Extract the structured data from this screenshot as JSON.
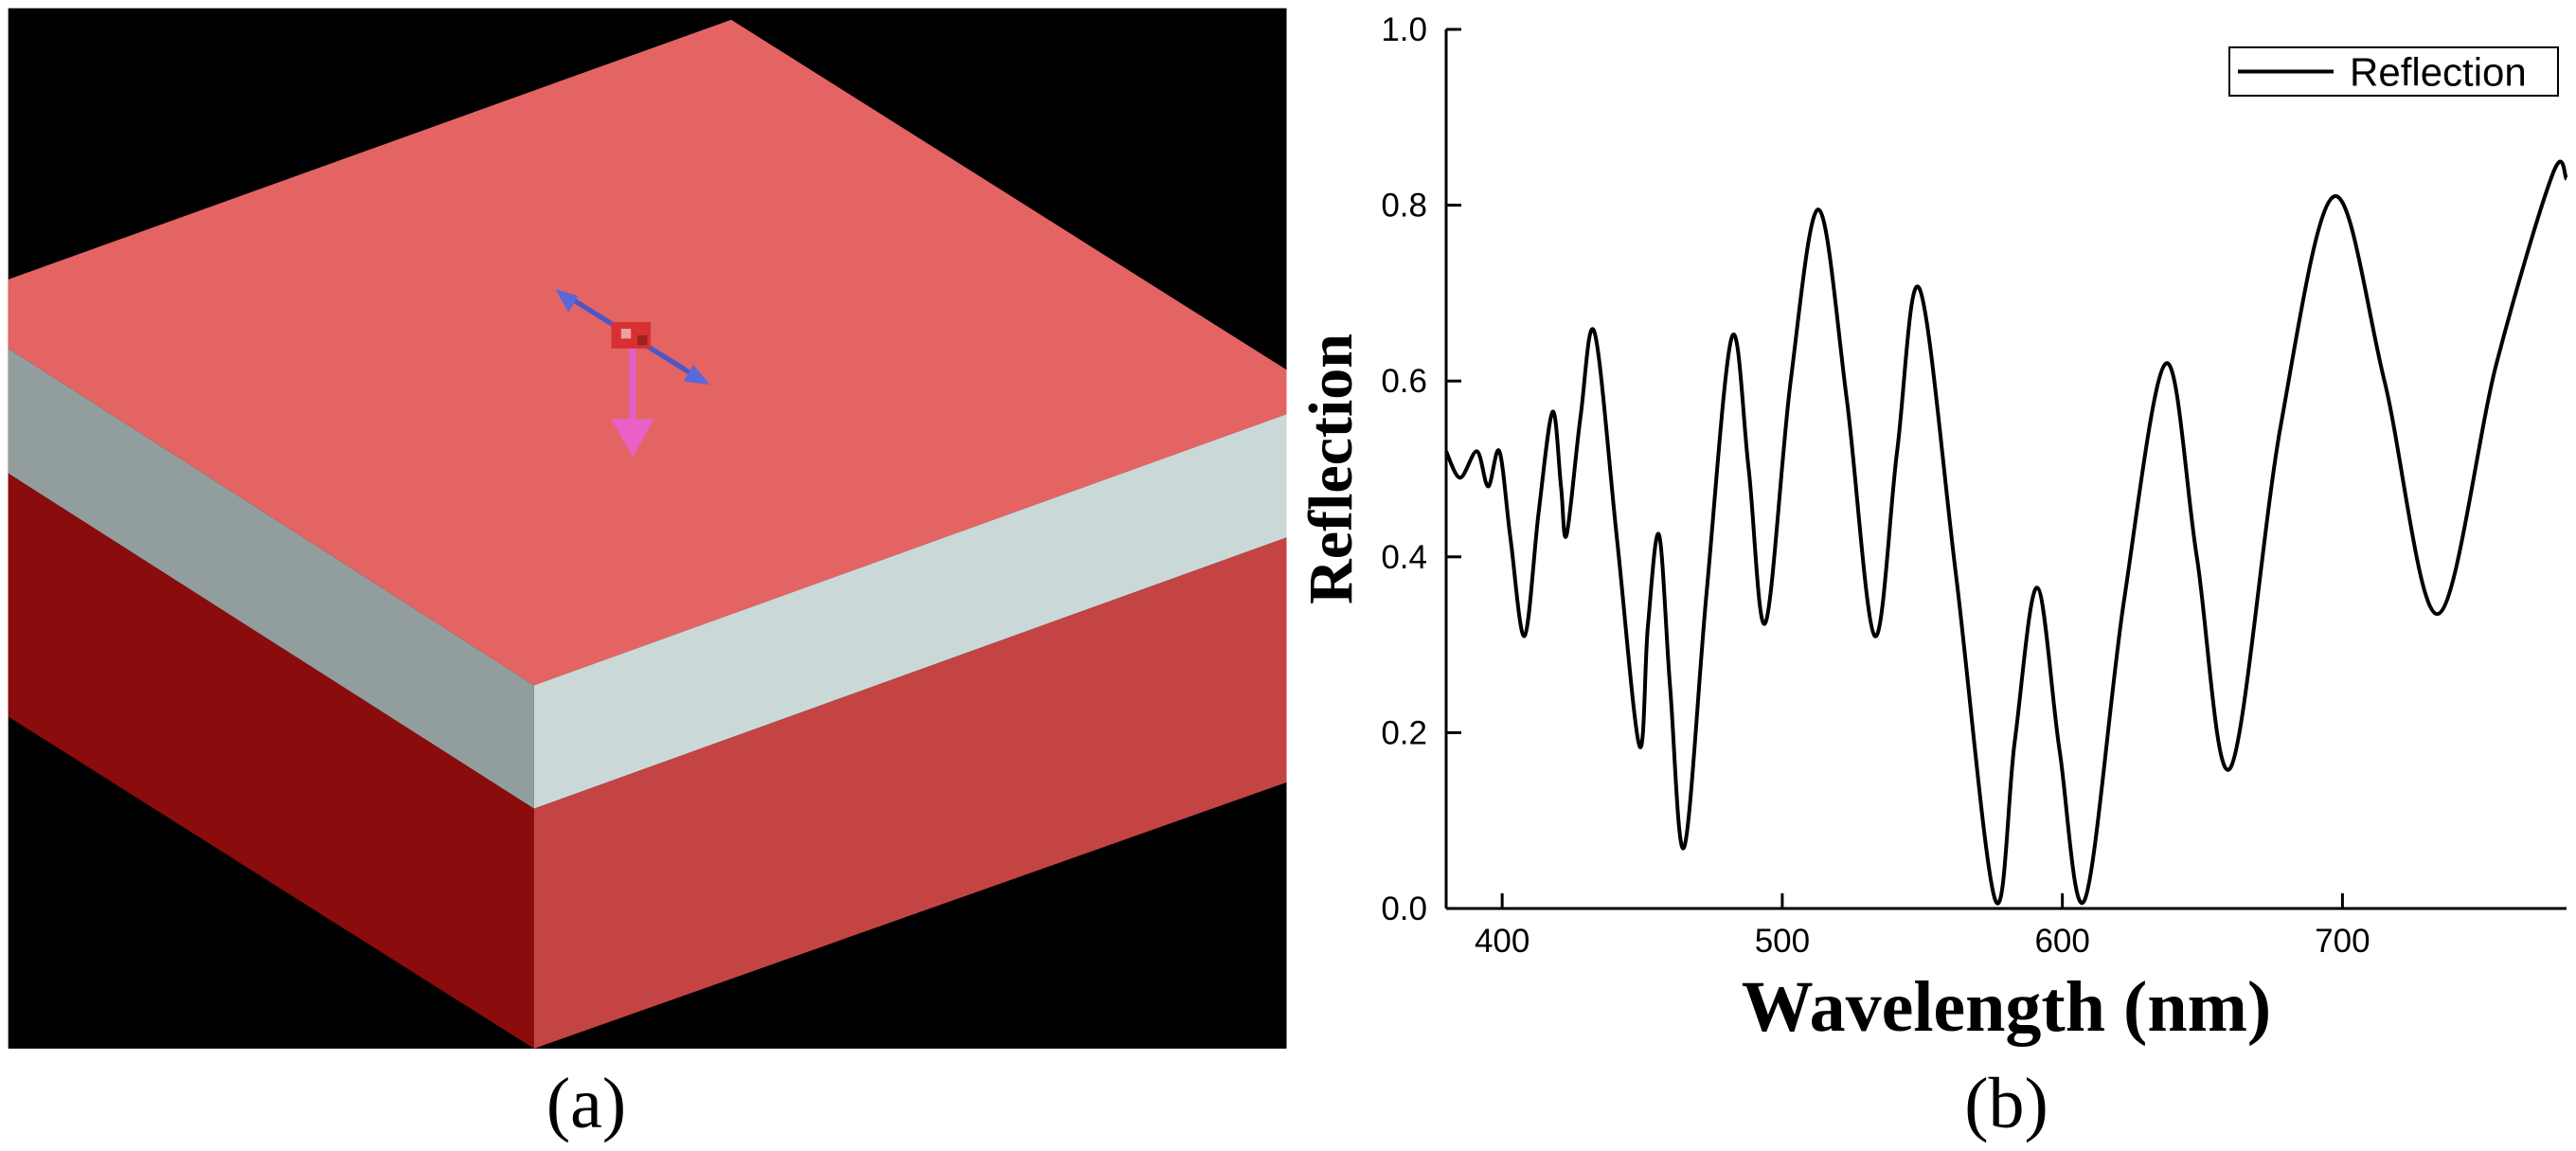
{
  "panel_a": {
    "caption": "(a)"
  },
  "chart_data": {
    "type": "line",
    "caption": "(b)",
    "x_label": "Wavelength (nm)",
    "y_label": "Reflection",
    "x": [
      380,
      385,
      391,
      395,
      399,
      403,
      408,
      413,
      418,
      421,
      423,
      428,
      433,
      441,
      449,
      452,
      456,
      460,
      465,
      473,
      482,
      488,
      494,
      503,
      513,
      523,
      533,
      541,
      549,
      562,
      576,
      583,
      591,
      599,
      608,
      622,
      637,
      648,
      660,
      678,
      697,
      715,
      734,
      755,
      775,
      780
    ],
    "series": [
      {
        "name": "Reflection",
        "color": "#000000",
        "values": [
          0.52,
          0.49,
          0.52,
          0.48,
          0.52,
          0.42,
          0.31,
          0.45,
          0.565,
          0.48,
          0.425,
          0.56,
          0.655,
          0.42,
          0.185,
          0.32,
          0.425,
          0.25,
          0.07,
          0.36,
          0.65,
          0.5,
          0.325,
          0.6,
          0.795,
          0.58,
          0.31,
          0.52,
          0.705,
          0.38,
          0.01,
          0.19,
          0.365,
          0.18,
          0.01,
          0.35,
          0.62,
          0.4,
          0.16,
          0.55,
          0.81,
          0.6,
          0.335,
          0.62,
          0.835,
          0.83
        ]
      }
    ],
    "xlim": [
      380,
      780
    ],
    "xticks": [
      400,
      500,
      600,
      700
    ],
    "ylim": [
      0,
      1
    ],
    "yticks": [
      {
        "value": 0,
        "label": "0.0"
      },
      0.2,
      0.4,
      0.6,
      0.8,
      {
        "value": 1,
        "label": "1.0"
      }
    ],
    "legend": "upper right",
    "grid": false
  }
}
